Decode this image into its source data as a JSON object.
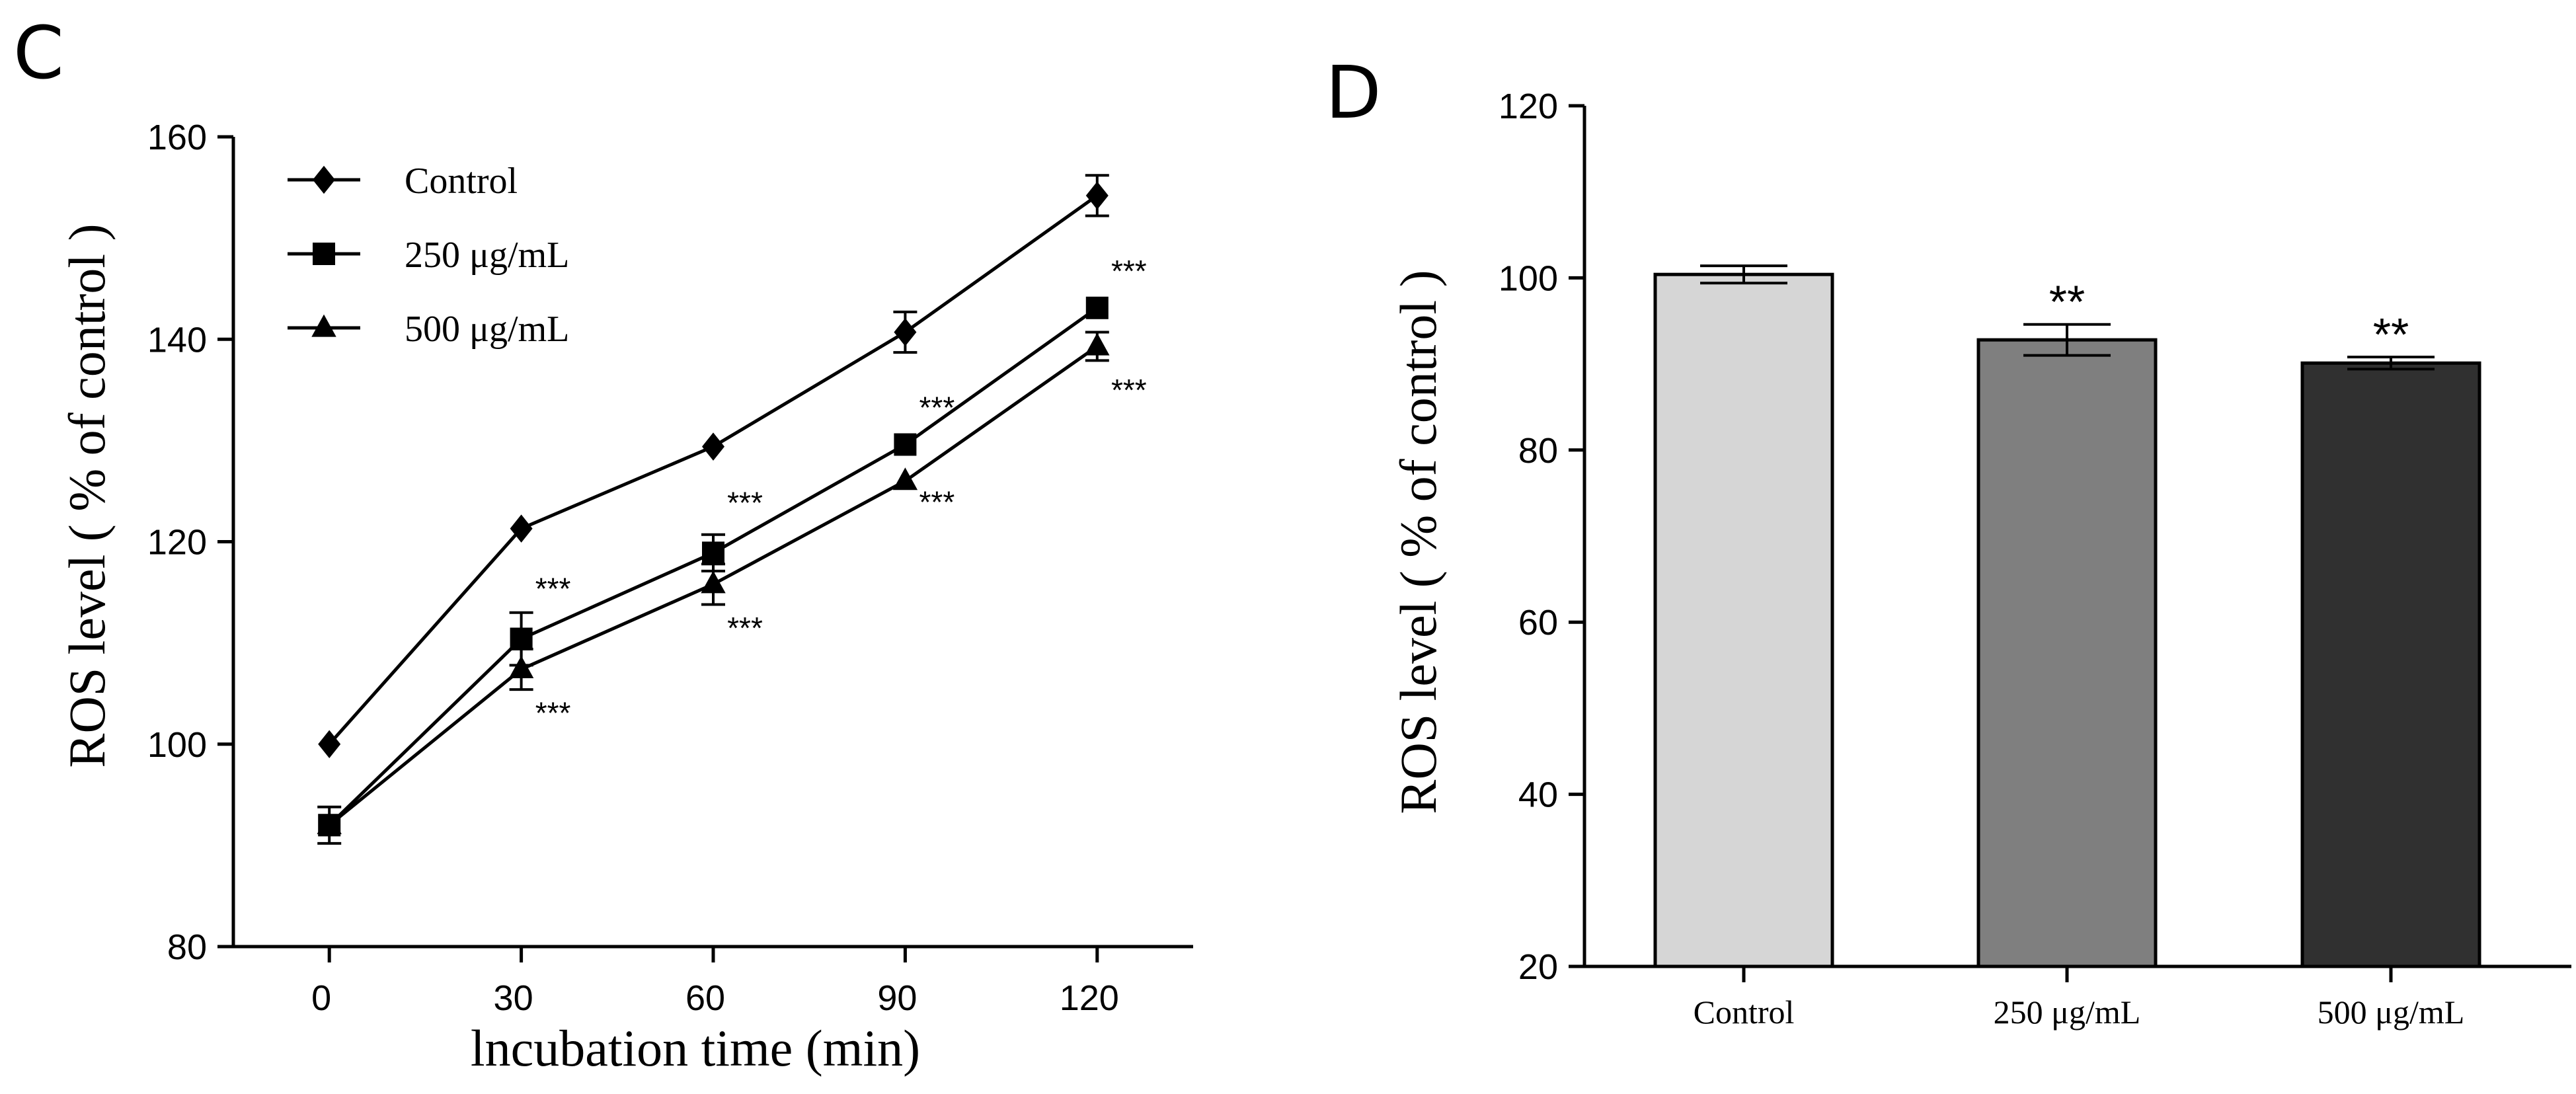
{
  "chart_data": [
    {
      "panel": "C",
      "type": "line",
      "xlabel": "lncubation time (min)",
      "ylabel": "ROS level ( % of control )",
      "x": [
        0,
        30,
        60,
        90,
        120
      ],
      "xticks": [
        "0",
        "30",
        "60",
        "90",
        "120"
      ],
      "yticks": [
        "80",
        "100",
        "120",
        "140",
        "160"
      ],
      "xlim": [
        -15,
        135
      ],
      "ylim": [
        80,
        160
      ],
      "series": [
        {
          "name": "Control",
          "marker": "diamond",
          "values": [
            100,
            121.3,
            129.4,
            140.7,
            154.2
          ],
          "err": [
            0,
            0,
            0,
            2.0,
            2.0
          ],
          "sig": [
            "",
            "",
            "",
            "",
            ""
          ]
        },
        {
          "name": "250 μg/mL",
          "marker": "square",
          "values": [
            92,
            110.4,
            118.9,
            129.6,
            143.1
          ],
          "err": [
            1.8,
            2.6,
            1.8,
            0,
            0
          ],
          "sig": [
            "",
            "***",
            "***",
            "***",
            "***"
          ]
        },
        {
          "name": "500 μg/mL",
          "marker": "triangle",
          "values": [
            92,
            107.4,
            115.8,
            126.0,
            139.3
          ],
          "err": [
            0,
            2.0,
            2.0,
            0,
            1.4
          ],
          "sig": [
            "",
            "***",
            "***",
            "***",
            "***"
          ]
        }
      ]
    },
    {
      "panel": "D",
      "type": "bar",
      "ylabel": "ROS level ( % of control )",
      "categories": [
        "Control",
        "250 μg/mL",
        "500 μg/mL"
      ],
      "values": [
        100.4,
        92.8,
        90.1
      ],
      "err": [
        1.0,
        1.8,
        0.7
      ],
      "sig": [
        "",
        "**",
        "**"
      ],
      "colors": [
        "#d6d6d6",
        "#7f7f7f",
        "#303030"
      ],
      "yticks": [
        "20",
        "40",
        "60",
        "80",
        "100",
        "120"
      ],
      "ylim": [
        20,
        120
      ]
    }
  ]
}
